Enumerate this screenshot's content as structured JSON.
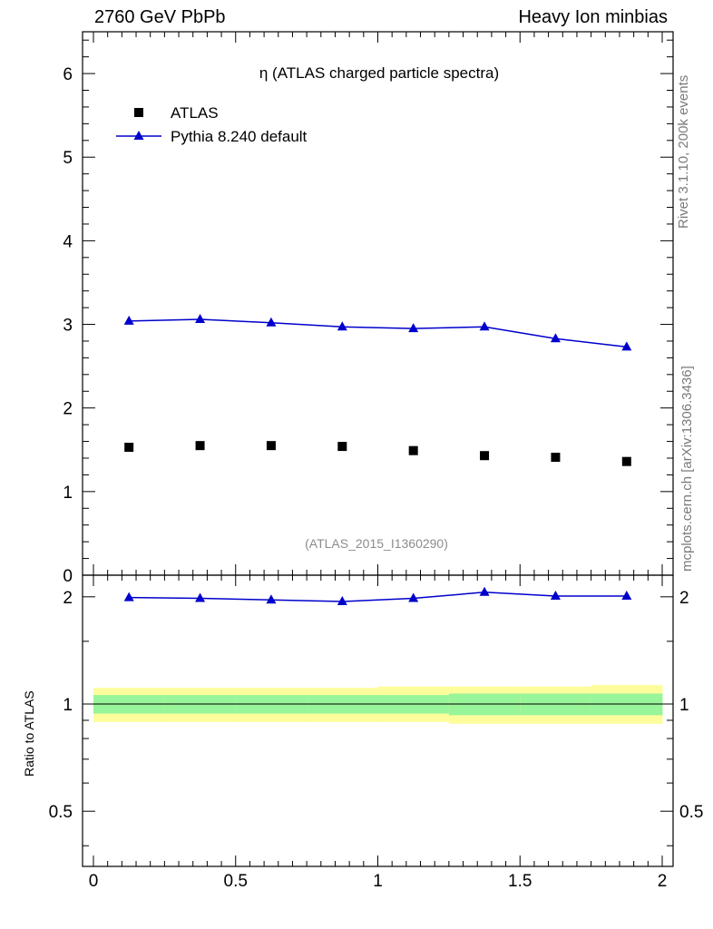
{
  "header": {
    "left": "2760 GeV PbPb",
    "right": "Heavy Ion minbias"
  },
  "side_labels": {
    "rivet": "Rivet 3.1.10,  200k events",
    "mcplots": "mcplots.cern.ch [arXiv:1306.3436]"
  },
  "colors": {
    "mc": "#0000cc",
    "data": "#000000",
    "band_inner": "#99f599",
    "band_outer": "#fdfd9c",
    "analysis_tag": "#8c8c8c"
  },
  "chart_data": [
    {
      "type": "scatter",
      "title": "η (ATLAS charged particle spectra)",
      "analysis_tag": "(ATLAS_2015_I1360290)",
      "xlim": [
        0,
        2
      ],
      "ylim": [
        0,
        6.5
      ],
      "yticks": [
        0,
        1,
        2,
        3,
        4,
        5,
        6
      ],
      "ytick_labels": [
        "0",
        "1",
        "2",
        "3",
        "4",
        "5",
        "6"
      ],
      "legend_position": "top-left",
      "x": [
        0.125,
        0.375,
        0.625,
        0.875,
        1.125,
        1.375,
        1.625,
        1.875
      ],
      "series": [
        {
          "name": "ATLAS",
          "marker": "square",
          "values": [
            1.53,
            1.55,
            1.55,
            1.54,
            1.49,
            1.43,
            1.41,
            1.36
          ]
        },
        {
          "name": "Pythia 8.240 default",
          "marker": "triangle-line",
          "values": [
            3.04,
            3.06,
            3.02,
            2.97,
            2.95,
            2.97,
            2.83,
            2.73
          ]
        }
      ]
    },
    {
      "type": "line",
      "ylabel": "Ratio to ATLAS",
      "xlim": [
        0,
        2
      ],
      "ylim": [
        0.35,
        2.3
      ],
      "xticks": [
        0,
        0.5,
        1,
        1.5,
        2
      ],
      "xtick_labels": [
        "0",
        "0.5",
        "1",
        "1.5",
        "2"
      ],
      "yticks": [
        0.5,
        1,
        2
      ],
      "ytick_labels": [
        "0.5",
        "1",
        "2"
      ],
      "x": [
        0.125,
        0.375,
        0.625,
        0.875,
        1.125,
        1.375,
        1.625,
        1.875
      ],
      "series": [
        {
          "name": "Pythia 8.240 default",
          "values": [
            1.99,
            1.98,
            1.96,
            1.94,
            1.98,
            2.06,
            2.01,
            2.01
          ]
        }
      ],
      "bands": {
        "x_edges": [
          0,
          0.25,
          0.5,
          0.75,
          1.0,
          1.25,
          1.5,
          1.75,
          2.0
        ],
        "inner_low": [
          0.94,
          0.94,
          0.94,
          0.94,
          0.94,
          0.93,
          0.93,
          0.93
        ],
        "inner_high": [
          1.06,
          1.06,
          1.06,
          1.06,
          1.06,
          1.07,
          1.07,
          1.07
        ],
        "outer_low": [
          0.89,
          0.89,
          0.89,
          0.89,
          0.89,
          0.88,
          0.88,
          0.88
        ],
        "outer_high": [
          1.11,
          1.11,
          1.11,
          1.11,
          1.12,
          1.12,
          1.12,
          1.13
        ]
      }
    }
  ]
}
